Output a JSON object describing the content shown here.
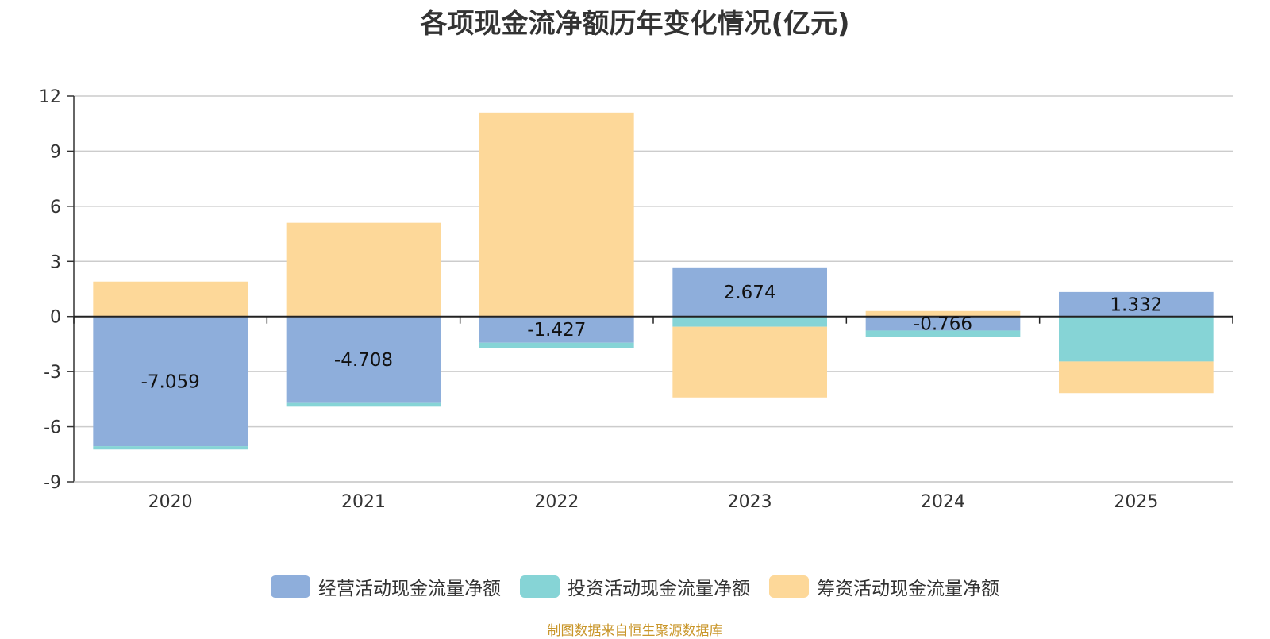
{
  "chart_data": {
    "type": "bar",
    "stacked": true,
    "title": "各项现金流净额历年变化情况(亿元)",
    "categories": [
      "2020",
      "2021",
      "2022",
      "2023",
      "2024",
      "2025"
    ],
    "ylim": [
      -9,
      12
    ],
    "yticks": [
      12,
      9,
      6,
      3,
      0,
      -3,
      -6,
      -9
    ],
    "grid": true,
    "legend_position": "bottom",
    "series": [
      {
        "name": "经营活动现金流量净额",
        "color": "#8eaedb",
        "values": [
          -7.059,
          -4.708,
          -1.427,
          2.674,
          -0.766,
          1.332
        ],
        "labels": [
          "-7.059",
          "-4.708",
          "-1.427",
          "2.674",
          "-0.766",
          "1.332"
        ]
      },
      {
        "name": "投资活动现金流量净额",
        "color": "#86d4d6",
        "values": [
          -0.18,
          -0.2,
          -0.28,
          -0.56,
          -0.35,
          -2.45
        ]
      },
      {
        "name": "筹资活动现金流量净额",
        "color": "#fdd899",
        "values": [
          1.9,
          5.1,
          11.1,
          -3.85,
          0.3,
          -1.72
        ]
      }
    ]
  },
  "source_note": "制图数据来自恒生聚源数据库"
}
